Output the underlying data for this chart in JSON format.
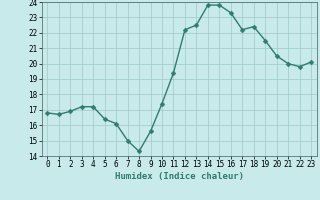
{
  "x": [
    0,
    1,
    2,
    3,
    4,
    5,
    6,
    7,
    8,
    9,
    10,
    11,
    12,
    13,
    14,
    15,
    16,
    17,
    18,
    19,
    20,
    21,
    22,
    23
  ],
  "y": [
    16.8,
    16.7,
    16.9,
    17.2,
    17.2,
    16.4,
    16.1,
    15.0,
    14.3,
    15.6,
    17.4,
    19.4,
    22.2,
    22.5,
    23.8,
    23.8,
    23.3,
    22.2,
    22.4,
    21.5,
    20.5,
    20.0,
    19.8,
    20.1
  ],
  "line_color": "#2e7d6e",
  "marker": "D",
  "markersize": 2.5,
  "linewidth": 1.0,
  "bg_color": "#c8eaea",
  "grid_color": "#9ec8c8",
  "xlabel": "Humidex (Indice chaleur)",
  "ylim": [
    14,
    24
  ],
  "xlim": [
    -0.5,
    23.5
  ],
  "yticks": [
    14,
    15,
    16,
    17,
    18,
    19,
    20,
    21,
    22,
    23,
    24
  ],
  "xticks": [
    0,
    1,
    2,
    3,
    4,
    5,
    6,
    7,
    8,
    9,
    10,
    11,
    12,
    13,
    14,
    15,
    16,
    17,
    18,
    19,
    20,
    21,
    22,
    23
  ],
  "tick_fontsize": 5.5,
  "label_fontsize": 6.5,
  "spine_color": "#406060"
}
